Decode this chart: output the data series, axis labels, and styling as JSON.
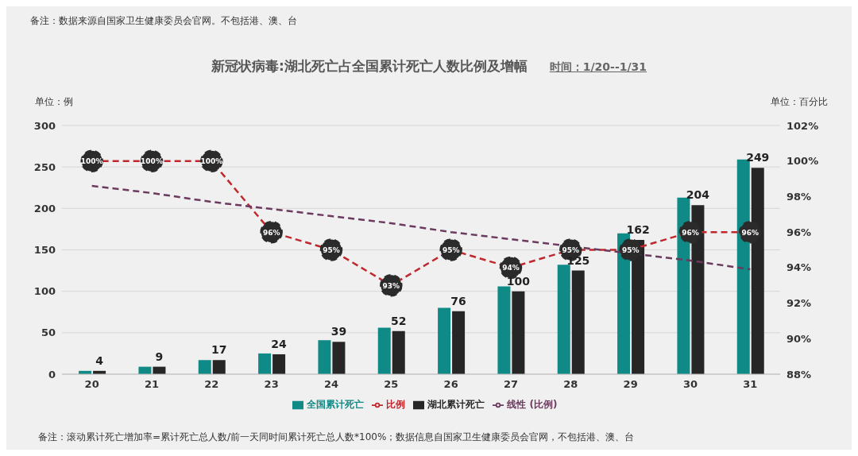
{
  "chart_data": {
    "type": "bar",
    "title": "新冠状病毒:湖北死亡占全国累计死亡人数比例及增幅",
    "subtitle": "时间：1/20--1/31",
    "ylabel": "单位：例",
    "y2label": "单位：百分比",
    "annotations": [
      "备注：数据来源自国家卫生健康委员会官网。不包括港、澳、台",
      "备注：滚动累计死亡增加率=累计死亡总人数/前一天同时间累计死亡总人数*100%；数据信息自国家卫生健康委员会官网，不包括港、澳、台"
    ],
    "categories": [
      "20",
      "21",
      "22",
      "23",
      "24",
      "25",
      "26",
      "27",
      "28",
      "29",
      "30",
      "31"
    ],
    "series": [
      {
        "name": "全国累计死亡",
        "color": "#0f8a86",
        "values": [
          4,
          9,
          17,
          25,
          41,
          56,
          80,
          106,
          132,
          170,
          213,
          259
        ]
      },
      {
        "name": "湖北累计死亡",
        "color": "#262626",
        "values": [
          4,
          9,
          17,
          24,
          39,
          52,
          76,
          100,
          125,
          162,
          204,
          249
        ],
        "value_labels": [
          "4",
          "9",
          "17",
          "24",
          "39",
          "52",
          "76",
          "100",
          "125",
          "162",
          "204",
          "249"
        ]
      },
      {
        "name": "比例",
        "type": "line",
        "axis": "y2",
        "color": "#c0282d",
        "line_style": "dashed",
        "marker": "circle",
        "values": [
          100,
          100,
          100,
          96,
          95,
          93,
          95,
          94,
          95,
          95,
          96,
          96
        ],
        "value_labels": [
          "100%",
          "100%",
          "100%",
          "96%",
          "95%",
          "93%",
          "95%",
          "94%",
          "95%",
          "95%",
          "96%",
          "96%"
        ]
      },
      {
        "name": "线性 (比例)",
        "type": "line",
        "axis": "y2",
        "color": "#6b3a5e",
        "line_style": "dashed",
        "marker": "none",
        "values": [
          98.6,
          98.2,
          97.7,
          97.3,
          96.9,
          96.5,
          96.0,
          95.6,
          95.2,
          94.8,
          94.4,
          93.9
        ]
      }
    ],
    "ylim": [
      0,
      300
    ],
    "yticks": [
      0,
      50,
      100,
      150,
      200,
      250,
      300
    ],
    "y2lim": [
      88,
      102
    ],
    "y2ticks": [
      {
        "value": 88,
        "label": "88%"
      },
      {
        "value": 90,
        "label": "90%"
      },
      {
        "value": 92,
        "label": "92%"
      },
      {
        "value": 94,
        "label": "94%"
      },
      {
        "value": 96,
        "label": "96%"
      },
      {
        "value": 98,
        "label": "98%"
      },
      {
        "value": 100,
        "label": "100%"
      },
      {
        "value": 102,
        "label": "102%"
      }
    ],
    "grid": "y",
    "legend": "bottom"
  }
}
